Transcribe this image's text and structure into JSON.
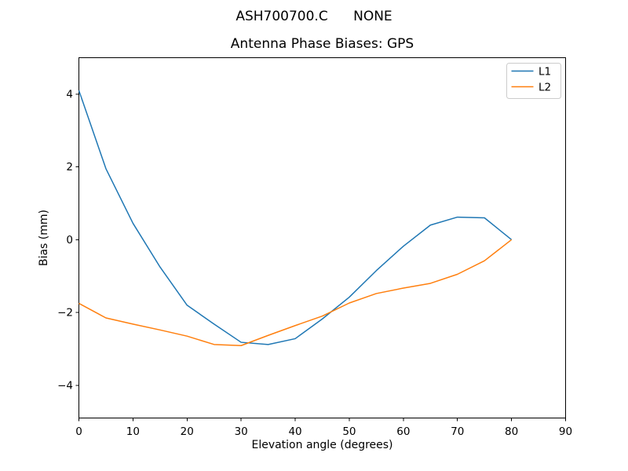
{
  "figure": {
    "suptitle": "ASH700700.C      NONE",
    "background": "#ffffff"
  },
  "chart_data": {
    "type": "line",
    "title": "Antenna Phase Biases: GPS",
    "suptitle": "ASH700700.C      NONE",
    "xlabel": "Elevation angle (degrees)",
    "ylabel": "Bias (mm)",
    "xlim": [
      0,
      90
    ],
    "ylim": [
      -4.9,
      5.0
    ],
    "xticks": [
      0,
      10,
      20,
      30,
      40,
      50,
      60,
      70,
      80,
      90
    ],
    "yticks": [
      4,
      2,
      0,
      -2,
      -4
    ],
    "grid": false,
    "legend_position": "upper right",
    "x": [
      0,
      5,
      10,
      15,
      20,
      25,
      30,
      35,
      40,
      45,
      50,
      55,
      60,
      65,
      70,
      75,
      80
    ],
    "series": [
      {
        "name": "L1",
        "color": "#1f77b4",
        "values": [
          4.1,
          1.95,
          0.45,
          -0.75,
          -1.8,
          -2.32,
          -2.82,
          -2.88,
          -2.72,
          -2.18,
          -1.58,
          -0.85,
          -0.18,
          0.4,
          0.62,
          0.6,
          0.0
        ]
      },
      {
        "name": "L2",
        "color": "#ff7f0e",
        "values": [
          -1.75,
          -2.15,
          -2.32,
          -2.48,
          -2.65,
          -2.88,
          -2.91,
          -2.63,
          -2.36,
          -2.1,
          -1.74,
          -1.48,
          -1.33,
          -1.2,
          -0.95,
          -0.58,
          0.0
        ]
      }
    ]
  }
}
